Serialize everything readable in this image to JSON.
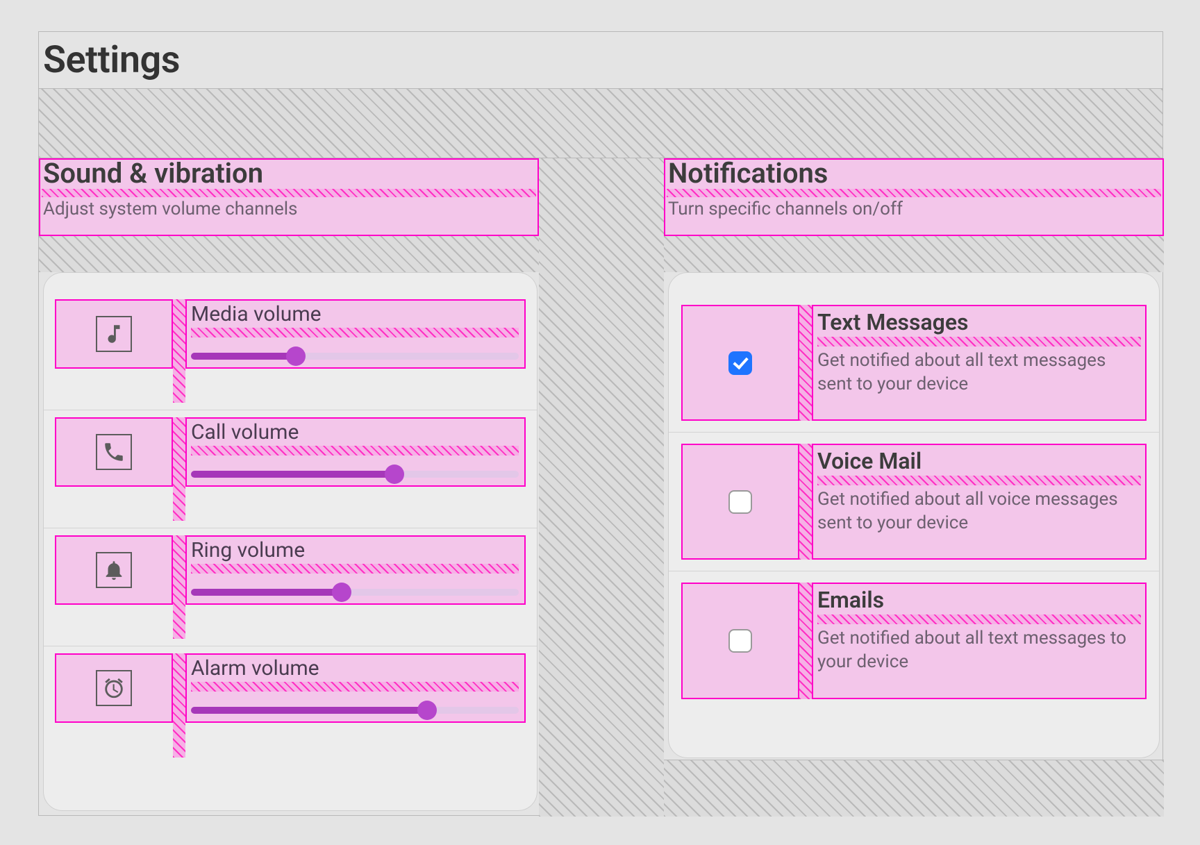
{
  "page": {
    "title": "Settings"
  },
  "style": {
    "pink_box_border": "#ff00c8",
    "pink_box_fill": "#f3c6ea",
    "hatch_grey_line": "#b9b9b9",
    "hatch_grey_gap": "#dcdcdc",
    "hatch_magenta_line": "#ff2fc4",
    "hatch_magenta_gap": "#f6b0e6",
    "card_bg": "#ededed",
    "card_border": "#cfcfcf",
    "slider_track": "#e3c7e8",
    "slider_fill": "#a637b9",
    "slider_thumb": "#b646cc",
    "icon_color": "#5c5c5c",
    "checkbox_checked": "#1e74ff",
    "text_primary": "#3c3c3c",
    "text_secondary": "#6d6070"
  },
  "sections": {
    "sound": {
      "title": "Sound & vibration",
      "subtitle": "Adjust system volume channels",
      "items": [
        {
          "icon": "music",
          "label": "Media volume",
          "value": 0.32
        },
        {
          "icon": "phone",
          "label": "Call volume",
          "value": 0.62
        },
        {
          "icon": "bell",
          "label": "Ring volume",
          "value": 0.46
        },
        {
          "icon": "alarm",
          "label": "Alarm volume",
          "value": 0.72
        }
      ]
    },
    "notifications": {
      "title": "Notifications",
      "subtitle": "Turn specific channels on/off",
      "items": [
        {
          "title": "Text Messages",
          "desc": "Get notified about all text messages sent to your device",
          "checked": true
        },
        {
          "title": "Voice Mail",
          "desc": "Get notified about all voice messages sent to your device",
          "checked": false
        },
        {
          "title": "Emails",
          "desc": "Get notified about all text messages to your device",
          "checked": false
        }
      ]
    }
  }
}
